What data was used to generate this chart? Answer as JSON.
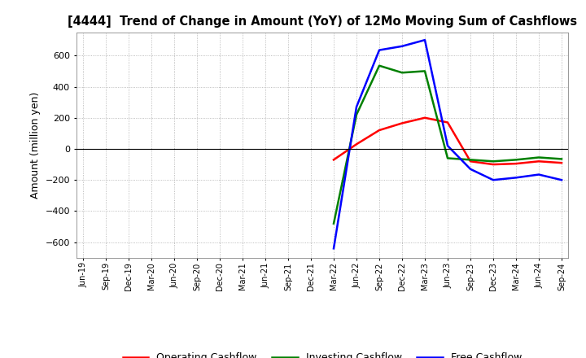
{
  "title": "[4444]  Trend of Change in Amount (YoY) of 12Mo Moving Sum of Cashflows",
  "ylabel": "Amount (million yen)",
  "background_color": "#ffffff",
  "grid_color": "#aaaaaa",
  "x_labels": [
    "Jun-19",
    "Sep-19",
    "Dec-19",
    "Mar-20",
    "Jun-20",
    "Sep-20",
    "Dec-20",
    "Mar-21",
    "Jun-21",
    "Sep-21",
    "Dec-21",
    "Mar-22",
    "Jun-22",
    "Sep-22",
    "Dec-22",
    "Mar-23",
    "Jun-23",
    "Sep-23",
    "Dec-23",
    "Mar-24",
    "Jun-24",
    "Sep-24"
  ],
  "operating": [
    null,
    null,
    null,
    null,
    null,
    null,
    null,
    null,
    null,
    null,
    null,
    -70,
    30,
    120,
    165,
    200,
    170,
    -80,
    -100,
    -95,
    -80,
    -90
  ],
  "investing": [
    null,
    null,
    null,
    null,
    null,
    null,
    null,
    null,
    null,
    null,
    null,
    -480,
    220,
    535,
    490,
    500,
    -60,
    -70,
    -80,
    -70,
    -55,
    -65
  ],
  "free": [
    null,
    null,
    null,
    null,
    null,
    null,
    null,
    null,
    null,
    null,
    null,
    -640,
    270,
    635,
    660,
    700,
    20,
    -130,
    -200,
    -185,
    -165,
    -200
  ],
  "ylim": [
    -700,
    750
  ],
  "yticks": [
    -600,
    -400,
    -200,
    0,
    200,
    400,
    600
  ],
  "operating_color": "#ff0000",
  "investing_color": "#008000",
  "free_color": "#0000ff",
  "line_width": 1.8
}
